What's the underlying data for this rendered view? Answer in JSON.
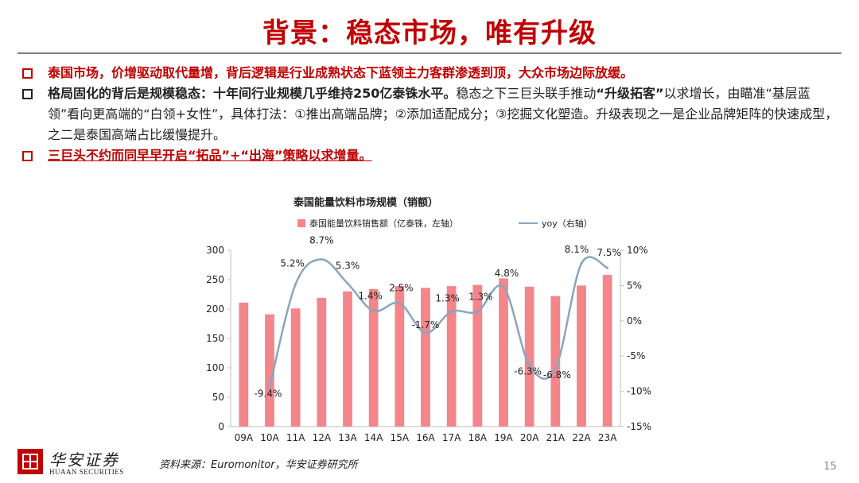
{
  "slide": {
    "title": "背景：稳态市场，唯有升级",
    "bullets": [
      {
        "text": "泰国市场，价增驱动取代量增，背后逻辑是行业成熟状态下蓝领主力客群渗透到顶，大众市场边际放缓。"
      },
      {
        "bold_a": "格局固化的背后是规模稳态：十年间行业规模几乎维持250亿泰铢水平。",
        "text_a": "稳态之下三巨头联手推动",
        "bold_b": "“升级拓客”",
        "text_b": "以求增长，由瞄准“基层蓝领”看向更高端的“白领+女性”，具体打法：①推出高端品牌；②添加适配成分；③挖掘文化塑造。升级表现之一是企业品牌矩阵的快速成型，之二是泰国高端占比缓慢提升。"
      },
      {
        "text": "三巨头不约而同早早开启“拓品”+“出海”策略以求增量。"
      }
    ],
    "source": "资料来源：Euromonitor，华安证券研究所",
    "page_number": "15",
    "logo": {
      "cn": "华安证券",
      "en": "HUAAN SECURITIES"
    }
  },
  "colors": {
    "title": "#c00000",
    "bar": "#f4858a",
    "line": "#8aa6bd",
    "text": "#222222"
  },
  "chart_data": {
    "type": "bar",
    "title": "泰国能量饮料市场规模（销额）",
    "categories": [
      "09A",
      "10A",
      "11A",
      "12A",
      "13A",
      "14A",
      "15A",
      "16A",
      "17A",
      "18A",
      "19A",
      "20A",
      "21A",
      "22A",
      "23A"
    ],
    "series": [
      {
        "name": "泰国能量饮料销售额（亿泰铢，左轴）",
        "type": "bar",
        "axis": "left",
        "values": [
          211,
          191,
          201,
          219,
          230,
          234,
          239,
          236,
          239,
          241,
          252,
          238,
          222,
          240,
          258
        ]
      },
      {
        "name": "yoy（右轴）",
        "type": "line",
        "axis": "right",
        "values": [
          null,
          -9.4,
          5.2,
          8.7,
          5.3,
          1.4,
          2.5,
          -1.7,
          1.3,
          1.3,
          4.8,
          -6.3,
          -6.8,
          8.1,
          7.5
        ],
        "labels": [
          "",
          "-9.4%",
          "5.2%",
          "8.7%",
          "5.3%",
          "1.4%",
          "2.5%",
          "-1.7%",
          "1.3%",
          "1.3%",
          "4.8%",
          "-6.3%",
          "-6.8%",
          "8.1%",
          "7.5%"
        ]
      }
    ],
    "y_left": {
      "min": 0,
      "max": 300,
      "ticks": [
        "0",
        "50",
        "100",
        "150",
        "200",
        "250",
        "300"
      ]
    },
    "y_right": {
      "min": -15,
      "max": 10,
      "ticks": [
        "-15%",
        "-10%",
        "-5%",
        "0%",
        "5%",
        "10%"
      ]
    },
    "legend": "top",
    "grid": false
  }
}
